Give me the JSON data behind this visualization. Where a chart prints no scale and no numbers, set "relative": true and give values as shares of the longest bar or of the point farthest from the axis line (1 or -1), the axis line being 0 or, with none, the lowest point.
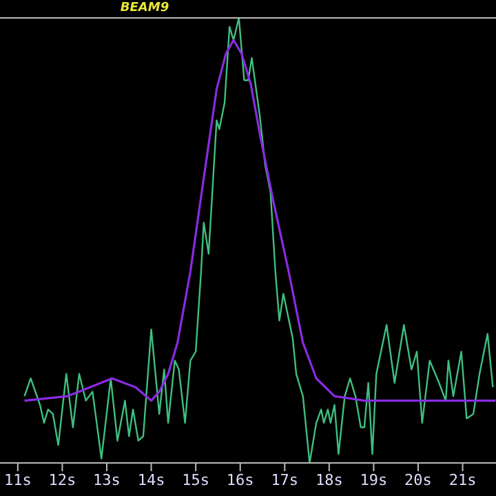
{
  "chart_data": {
    "type": "line",
    "title": "BEAM9",
    "relative": true,
    "marker": "none",
    "xlim": [
      10.6,
      21.75
    ],
    "xticks": [
      {
        "value": 11,
        "label": "11s"
      },
      {
        "value": 12,
        "label": "12s"
      },
      {
        "value": 13,
        "label": "13s"
      },
      {
        "value": 14,
        "label": "14s"
      },
      {
        "value": 15,
        "label": "15s"
      },
      {
        "value": 16,
        "label": "16s"
      },
      {
        "value": 17,
        "label": "17s"
      },
      {
        "value": 18,
        "label": "18s"
      },
      {
        "value": 19,
        "label": "19s"
      },
      {
        "value": 20,
        "label": "20s"
      },
      {
        "value": 21,
        "label": "21s"
      }
    ],
    "series": [
      {
        "color": "#3fbf7f",
        "x": [
          11.15,
          11.29,
          11.5,
          11.59,
          11.68,
          11.79,
          11.91,
          12.09,
          12.24,
          12.38,
          12.53,
          12.68,
          12.88,
          13.09,
          13.24,
          13.41,
          13.5,
          13.59,
          13.71,
          13.82,
          14.0,
          14.18,
          14.29,
          14.38,
          14.53,
          14.62,
          14.76,
          14.88,
          15.0,
          15.12,
          15.18,
          15.29,
          15.47,
          15.53,
          15.65,
          15.76,
          15.85,
          15.97,
          16.09,
          16.18,
          16.26,
          16.44,
          16.56,
          16.68,
          16.79,
          16.88,
          16.97,
          17.18,
          17.26,
          17.41,
          17.56,
          17.71,
          17.82,
          17.88,
          17.97,
          18.03,
          18.12,
          18.21,
          18.35,
          18.47,
          18.59,
          18.71,
          18.79,
          18.88,
          18.97,
          19.06,
          19.29,
          19.47,
          19.68,
          19.85,
          19.97,
          20.09,
          20.26,
          20.47,
          20.62,
          20.68,
          20.79,
          20.97,
          21.09,
          21.24,
          21.38,
          21.56,
          21.68
        ],
        "values": [
          0.15,
          0.19,
          0.13,
          0.09,
          0.12,
          0.11,
          0.04,
          0.2,
          0.08,
          0.2,
          0.14,
          0.16,
          0.01,
          0.19,
          0.05,
          0.14,
          0.06,
          0.12,
          0.05,
          0.06,
          0.3,
          0.11,
          0.21,
          0.09,
          0.23,
          0.21,
          0.09,
          0.23,
          0.25,
          0.43,
          0.54,
          0.47,
          0.77,
          0.75,
          0.81,
          0.98,
          0.95,
          1.0,
          0.86,
          0.86,
          0.91,
          0.78,
          0.67,
          0.61,
          0.43,
          0.32,
          0.38,
          0.28,
          0.2,
          0.15,
          0.0,
          0.09,
          0.12,
          0.09,
          0.12,
          0.09,
          0.13,
          0.02,
          0.15,
          0.19,
          0.15,
          0.08,
          0.08,
          0.18,
          0.02,
          0.2,
          0.31,
          0.18,
          0.31,
          0.21,
          0.25,
          0.09,
          0.23,
          0.18,
          0.14,
          0.23,
          0.15,
          0.25,
          0.1,
          0.11,
          0.2,
          0.29,
          0.17
        ]
      },
      {
        "color": "#8a2be2",
        "x": [
          11.15,
          12.12,
          12.62,
          13.12,
          13.65,
          14.0,
          14.18,
          14.38,
          14.59,
          14.88,
          15.18,
          15.47,
          15.68,
          15.85,
          16.03,
          16.24,
          16.44,
          16.74,
          17.09,
          17.41,
          17.71,
          18.12,
          18.79,
          21.74
        ],
        "values": [
          0.14,
          0.15,
          0.17,
          0.19,
          0.17,
          0.14,
          0.16,
          0.2,
          0.27,
          0.43,
          0.64,
          0.84,
          0.92,
          0.95,
          0.92,
          0.85,
          0.74,
          0.59,
          0.43,
          0.27,
          0.19,
          0.15,
          0.14,
          0.14
        ]
      }
    ]
  }
}
